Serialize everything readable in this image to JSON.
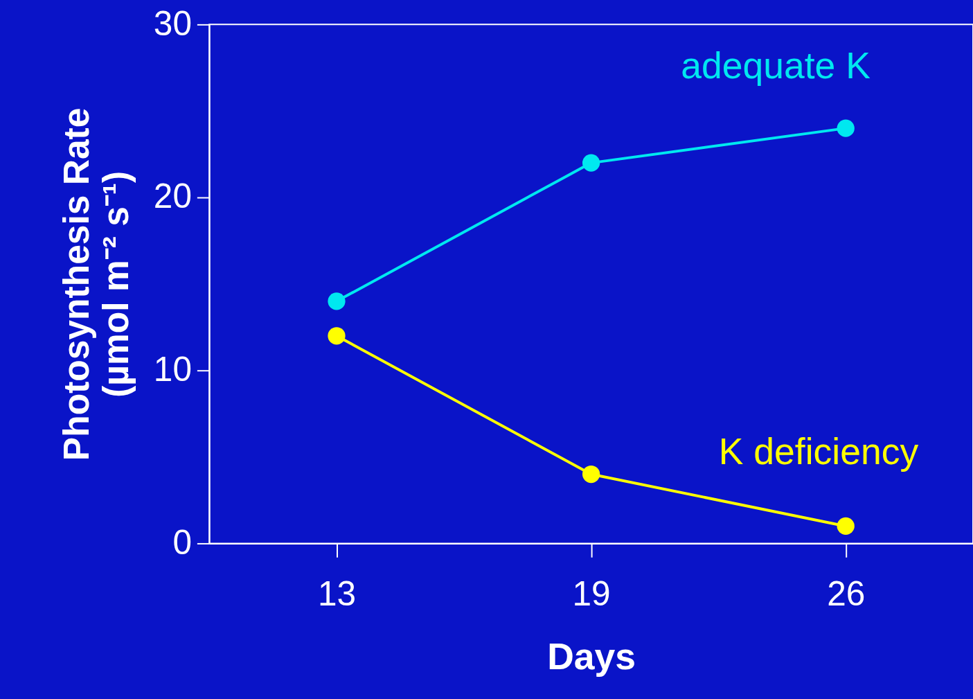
{
  "chart_data": {
    "type": "line",
    "xlabel": "Days",
    "ylabel": [
      "Photosynthesis Rate",
      "(µmol m⁻² s⁻¹)"
    ],
    "categories": [
      "13",
      "19",
      "26"
    ],
    "series": [
      {
        "name": "adequate K",
        "color": "#00e8f0",
        "values": [
          14,
          22,
          24
        ]
      },
      {
        "name": "K deficiency",
        "color": "#ffff00",
        "values": [
          12,
          4,
          1
        ]
      }
    ],
    "ylim": [
      0,
      30
    ],
    "yticks": [
      0,
      10,
      20,
      30
    ],
    "grid": false,
    "legend": false,
    "marker": "circle",
    "line_style": "solid"
  }
}
